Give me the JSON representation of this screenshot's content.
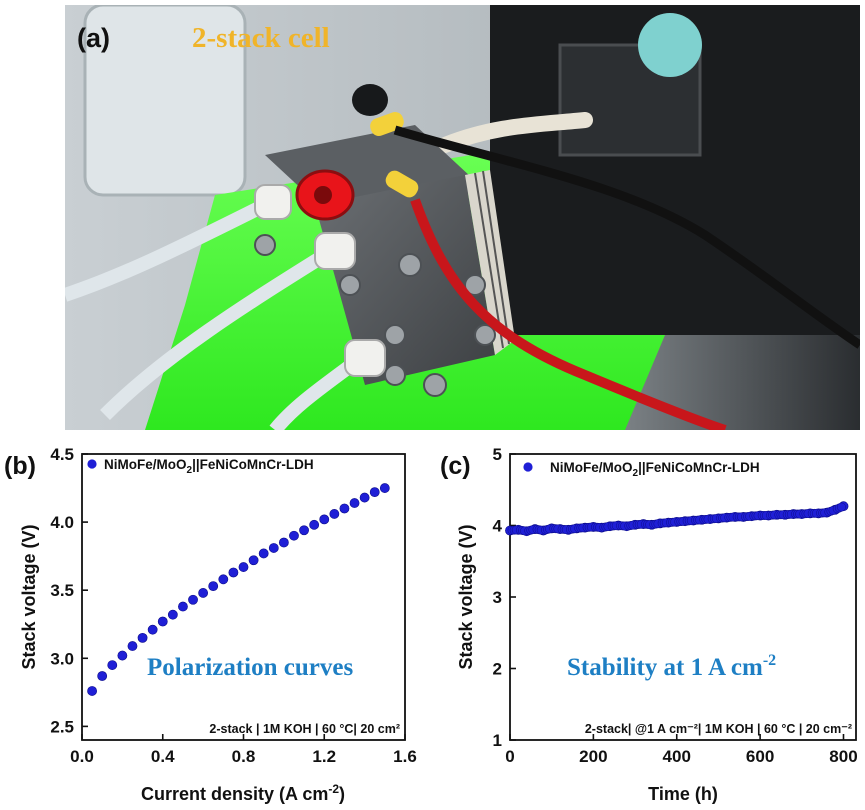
{
  "photo": {
    "panel_label": "(a)",
    "caption": "2-stack cell",
    "colors": {
      "caption": "#f0b429",
      "tray": "#4cff3a",
      "red_cable": "#c8161b",
      "terminal_red": "#e8141a"
    }
  },
  "chart_data": [
    {
      "type": "scatter",
      "panel_label": "(b)",
      "title": "",
      "xlabel": "Current density (A cm",
      "xlabel_sup": "-2",
      "xlabel_end": ")",
      "ylabel": "Stack voltage (V)",
      "xlim": [
        0.0,
        1.6
      ],
      "ylim": [
        2.4,
        4.5
      ],
      "xticks": [
        0.0,
        0.4,
        0.8,
        1.2,
        1.6
      ],
      "xtick_labels": [
        "0.0",
        "0.4",
        "0.8",
        "1.2",
        "1.6"
      ],
      "yticks": [
        2.5,
        3.0,
        3.5,
        4.0,
        4.5
      ],
      "ytick_labels": [
        "2.5",
        "3.0",
        "3.5",
        "4.0",
        "4.5"
      ],
      "legend": {
        "base": "NiMoFe/MoO",
        "sub": "2",
        "tail": "||FeNiCoMnCr-LDH",
        "position": "top-left"
      },
      "annotation": "Polarization curves",
      "conditions": "2-stack | 1M KOH | 60 °C| 20 cm²",
      "series": [
        {
          "name": "NiMoFe/MoO2||FeNiCoMnCr-LDH",
          "color": "#1f1fd6",
          "x": [
            0.05,
            0.1,
            0.15,
            0.2,
            0.25,
            0.3,
            0.35,
            0.4,
            0.45,
            0.5,
            0.55,
            0.6,
            0.65,
            0.7,
            0.75,
            0.8,
            0.85,
            0.9,
            0.95,
            1.0,
            1.05,
            1.1,
            1.15,
            1.2,
            1.25,
            1.3,
            1.35,
            1.4,
            1.45,
            1.5
          ],
          "y": [
            2.76,
            2.87,
            2.95,
            3.02,
            3.09,
            3.15,
            3.21,
            3.27,
            3.32,
            3.38,
            3.43,
            3.48,
            3.53,
            3.58,
            3.63,
            3.67,
            3.72,
            3.77,
            3.81,
            3.85,
            3.9,
            3.94,
            3.98,
            4.02,
            4.06,
            4.1,
            4.14,
            4.18,
            4.22,
            4.25
          ]
        }
      ]
    },
    {
      "type": "scatter",
      "panel_label": "(c)",
      "title": "",
      "xlabel": "Time (h)",
      "ylabel": "Stack voltage (V)",
      "xlim": [
        0,
        830
      ],
      "ylim": [
        1,
        5
      ],
      "xticks": [
        0,
        200,
        400,
        600,
        800
      ],
      "xtick_labels": [
        "0",
        "200",
        "400",
        "600",
        "800"
      ],
      "yticks": [
        1,
        2,
        3,
        4,
        5
      ],
      "ytick_labels": [
        "1",
        "2",
        "3",
        "4",
        "5"
      ],
      "legend": {
        "base": "NiMoFe/MoO",
        "sub": "2",
        "tail": "||FeNiCoMnCr-LDH",
        "position": "top-left"
      },
      "annotation": "Stability at 1 A cm",
      "annotation_sup": "-2",
      "conditions": "2-stack| @1 A cm⁻²| 1M KOH | 60 °C | 20 cm⁻²",
      "series": [
        {
          "name": "NiMoFe/MoO2||FeNiCoMnCr-LDH",
          "color": "#1f1fd6",
          "x": [
            0,
            20,
            40,
            60,
            80,
            100,
            120,
            140,
            160,
            180,
            200,
            220,
            240,
            260,
            280,
            300,
            320,
            340,
            360,
            380,
            400,
            420,
            440,
            460,
            480,
            500,
            520,
            540,
            560,
            580,
            600,
            620,
            640,
            660,
            680,
            700,
            720,
            740,
            760,
            780,
            800
          ],
          "y": [
            3.93,
            3.94,
            3.92,
            3.95,
            3.93,
            3.96,
            3.95,
            3.94,
            3.96,
            3.97,
            3.98,
            3.97,
            3.99,
            4.0,
            3.99,
            4.01,
            4.02,
            4.01,
            4.03,
            4.04,
            4.05,
            4.06,
            4.07,
            4.08,
            4.09,
            4.1,
            4.11,
            4.12,
            4.12,
            4.13,
            4.14,
            4.14,
            4.15,
            4.15,
            4.16,
            4.16,
            4.17,
            4.17,
            4.18,
            4.22,
            4.27
          ]
        }
      ]
    }
  ]
}
